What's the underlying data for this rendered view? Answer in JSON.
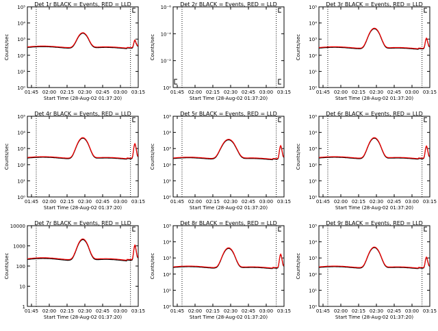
{
  "colors": {
    "events": "#000000",
    "lld": "#ff0000",
    "axis": "#000000"
  },
  "chart_data": [
    {
      "type": "line",
      "title": "Det 1r BLACK = Events, RED = LLD",
      "xlabel": "Start Time (28-Aug-02 01:37:20)",
      "ylabel": "Counts/sec",
      "xticks": [
        "01:45",
        "02:00",
        "02:15",
        "02:30",
        "02:45",
        "03:00",
        "03:15"
      ],
      "yticks": [
        "10⁰",
        "10¹",
        "10²",
        "10³",
        "10⁴",
        "10⁵"
      ],
      "ylim": [
        1,
        100000
      ],
      "ylog": true,
      "xrange_min": [
        0,
        100
      ],
      "vlines_min": [
        8,
        93
      ],
      "ylog_scale": [
        0,
        5
      ],
      "base": 330,
      "peak": 2200,
      "peak_center": 50,
      "peak_width": 5,
      "spike": 600,
      "spike_center": 97,
      "has_data": true,
      "series": [
        {
          "name": "Events"
        },
        {
          "name": "LLD"
        }
      ]
    },
    {
      "type": "line",
      "title": "Det 2r BLACK = Events, RED = LLD",
      "xlabel": "Start Time (28-Aug-02 01:37:20)",
      "ylabel": "Counts/sec",
      "xticks": [
        "01:45",
        "02:00",
        "02:15",
        "02:30",
        "02:45",
        "03:00",
        "03:15"
      ],
      "yticks": [
        "10⁰",
        "10⁻²",
        "10⁻⁴",
        "10⁻⁶"
      ],
      "ylim": [
        1e-07,
        1
      ],
      "ylog": true,
      "xrange_min": [
        0,
        100
      ],
      "vlines_min": [
        8,
        93
      ],
      "ylog_scale": [
        -7,
        0
      ],
      "has_data": false,
      "series": [
        {
          "name": "Events"
        },
        {
          "name": "LLD"
        }
      ]
    },
    {
      "type": "line",
      "title": "Det 3r BLACK = Events, RED = LLD",
      "xlabel": "Start Time (28-Aug-02 01:37:20)",
      "ylabel": "Counts/sec",
      "xticks": [
        "01:45",
        "02:00",
        "02:15",
        "02:30",
        "02:45",
        "03:00",
        "03:15"
      ],
      "yticks": [
        "10⁰",
        "10¹",
        "10²",
        "10³",
        "10⁴",
        "10⁵"
      ],
      "ylim": [
        1,
        100000
      ],
      "ylog": true,
      "xrange_min": [
        0,
        100
      ],
      "vlines_min": [
        8,
        93
      ],
      "ylog_scale": [
        0,
        5
      ],
      "base": 300,
      "peak": 4500,
      "peak_center": 50,
      "peak_width": 5,
      "spike": 900,
      "spike_center": 97,
      "has_data": true,
      "series": [
        {
          "name": "Events"
        },
        {
          "name": "LLD"
        }
      ]
    },
    {
      "type": "line",
      "title": "Det 4r BLACK = Events, RED = LLD",
      "xlabel": "Start Time (28-Aug-02 01:37:20)",
      "ylabel": "Counts/sec",
      "xticks": [
        "01:45",
        "02:00",
        "02:15",
        "02:30",
        "02:45",
        "03:00",
        "03:15"
      ],
      "yticks": [
        "10⁰",
        "10¹",
        "10²",
        "10³",
        "10⁴",
        "10⁵"
      ],
      "ylim": [
        1,
        100000
      ],
      "ylog": true,
      "xrange_min": [
        0,
        100
      ],
      "vlines_min": [
        8,
        93
      ],
      "ylog_scale": [
        0,
        5
      ],
      "base": 280,
      "peak": 4500,
      "peak_center": 50,
      "peak_width": 5,
      "spike": 1800,
      "spike_center": 97,
      "has_data": true,
      "series": [
        {
          "name": "Events"
        },
        {
          "name": "LLD"
        }
      ]
    },
    {
      "type": "line",
      "title": "Det 5r BLACK = Events, RED = LLD",
      "xlabel": "Start Time (28-Aug-02 01:37:20)",
      "ylabel": "Counts/sec",
      "xticks": [
        "01:45",
        "02:00",
        "02:15",
        "02:30",
        "02:45",
        "03:00",
        "03:15"
      ],
      "yticks": [
        "10⁰",
        "10¹",
        "10²",
        "10³",
        "10⁴",
        "10⁵"
      ],
      "ylim": [
        1,
        100000
      ],
      "ylog": true,
      "xrange_min": [
        0,
        100
      ],
      "vlines_min": [
        8,
        93
      ],
      "ylog_scale": [
        0,
        5
      ],
      "base": 260,
      "peak": 3500,
      "peak_center": 50,
      "peak_width": 6,
      "spike": 1300,
      "spike_center": 97,
      "has_data": true,
      "series": [
        {
          "name": "Events"
        },
        {
          "name": "LLD"
        }
      ]
    },
    {
      "type": "line",
      "title": "Det 6r BLACK = Events, RED = LLD",
      "xlabel": "Start Time (28-Aug-02 01:37:20)",
      "ylabel": "Counts/sec",
      "xticks": [
        "01:45",
        "02:00",
        "02:15",
        "02:30",
        "02:45",
        "03:00",
        "03:15"
      ],
      "yticks": [
        "10⁰",
        "10¹",
        "10²",
        "10³",
        "10⁴",
        "10⁵"
      ],
      "ylim": [
        1,
        100000
      ],
      "ylog": true,
      "xrange_min": [
        0,
        100
      ],
      "vlines_min": [
        8,
        93
      ],
      "ylog_scale": [
        0,
        5
      ],
      "base": 280,
      "peak": 4500,
      "peak_center": 50,
      "peak_width": 5,
      "spike": 1200,
      "spike_center": 97,
      "has_data": true,
      "series": [
        {
          "name": "Events"
        },
        {
          "name": "LLD"
        }
      ]
    },
    {
      "type": "line",
      "title": "Det 7r BLACK = Events, RED = LLD",
      "xlabel": "Start Time (28-Aug-02 01:37:20)",
      "ylabel": "Counts/sec",
      "xticks": [
        "01:45",
        "02:00",
        "02:15",
        "02:30",
        "02:45",
        "03:00",
        "03:15"
      ],
      "yticks": [
        "1",
        "10",
        "100",
        "1000",
        "10000"
      ],
      "ylim": [
        1,
        10000
      ],
      "ylog": true,
      "xrange_min": [
        0,
        100
      ],
      "vlines_min": [
        8,
        93
      ],
      "ylog_scale": [
        0,
        4
      ],
      "base": 230,
      "peak": 2000,
      "peak_center": 50,
      "peak_width": 5,
      "spike": 900,
      "spike_center": 97,
      "has_data": true,
      "series": [
        {
          "name": "Events"
        },
        {
          "name": "LLD"
        }
      ]
    },
    {
      "type": "line",
      "title": "Det 8r BLACK = Events, RED = LLD",
      "xlabel": "Start Time (28-Aug-02 01:37:20)",
      "ylabel": "Counts/sec",
      "xticks": [
        "01:45",
        "02:00",
        "02:15",
        "02:30",
        "02:45",
        "03:00",
        "03:15"
      ],
      "yticks": [
        "10⁰",
        "10¹",
        "10²",
        "10³",
        "10⁴",
        "10⁵"
      ],
      "ylim": [
        1,
        100000
      ],
      "ylog": true,
      "xrange_min": [
        0,
        100
      ],
      "vlines_min": [
        8,
        93
      ],
      "ylog_scale": [
        0,
        5
      ],
      "base": 280,
      "peak": 4000,
      "peak_center": 50,
      "peak_width": 5,
      "spike": 1500,
      "spike_center": 97,
      "has_data": true,
      "series": [
        {
          "name": "Events"
        },
        {
          "name": "LLD"
        }
      ]
    },
    {
      "type": "line",
      "title": "Det 9r BLACK = Events, RED = LLD",
      "xlabel": "Start Time (28-Aug-02 01:37:20)",
      "ylabel": "Counts/sec",
      "xticks": [
        "01:45",
        "02:00",
        "02:15",
        "02:30",
        "02:45",
        "03:00",
        "03:15"
      ],
      "yticks": [
        "10⁰",
        "10¹",
        "10²",
        "10³",
        "10⁴",
        "10⁵"
      ],
      "ylim": [
        1,
        100000
      ],
      "ylog": true,
      "xrange_min": [
        0,
        100
      ],
      "vlines_min": [
        8,
        93
      ],
      "ylog_scale": [
        0,
        5
      ],
      "base": 280,
      "peak": 4500,
      "peak_center": 50,
      "peak_width": 5,
      "spike": 900,
      "spike_center": 97,
      "has_data": true,
      "series": [
        {
          "name": "Events"
        },
        {
          "name": "LLD"
        }
      ]
    }
  ]
}
